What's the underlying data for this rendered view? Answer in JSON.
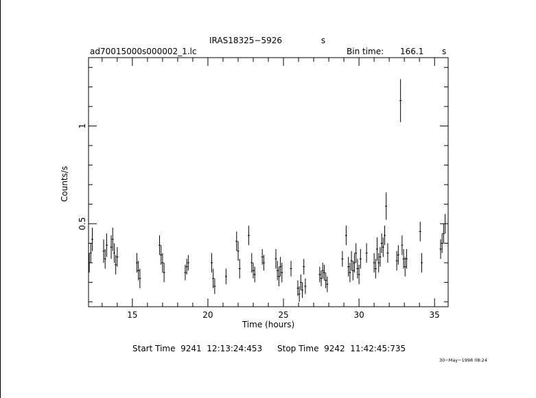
{
  "chart_data": {
    "type": "scatter",
    "title": "IRAS18325−5926",
    "title_suffix": "s",
    "file_name": "ad70015000s000002_1.lc",
    "bin_time_label": "Bin time:",
    "bin_time_value": "166.1",
    "bin_time_unit": "s",
    "xlabel": "Time (hours)",
    "ylabel": "Counts/s",
    "xlim": [
      12.1,
      35.9
    ],
    "ylim": [
      0.075,
      1.35
    ],
    "x_ticks": [
      {
        "value": 15,
        "label": "15"
      },
      {
        "value": 20,
        "label": "20"
      },
      {
        "value": 25,
        "label": "25"
      },
      {
        "value": 30,
        "label": "30"
      },
      {
        "value": 35,
        "label": "35"
      }
    ],
    "y_ticks": [
      {
        "value": 0.5,
        "label": "0.5"
      },
      {
        "value": 1,
        "label": "1"
      }
    ],
    "series": [
      {
        "points": [
          {
            "x": 12.15,
            "y": 0.3,
            "err": 0.05
          },
          {
            "x": 12.25,
            "y": 0.35,
            "err": 0.05
          },
          {
            "x": 12.35,
            "y": 0.42,
            "err": 0.06
          },
          {
            "x": 13.1,
            "y": 0.36,
            "err": 0.06
          },
          {
            "x": 13.2,
            "y": 0.32,
            "err": 0.05
          },
          {
            "x": 13.3,
            "y": 0.39,
            "err": 0.06
          },
          {
            "x": 13.6,
            "y": 0.38,
            "err": 0.06
          },
          {
            "x": 13.7,
            "y": 0.42,
            "err": 0.06
          },
          {
            "x": 13.8,
            "y": 0.35,
            "err": 0.05
          },
          {
            "x": 13.9,
            "y": 0.29,
            "err": 0.05
          },
          {
            "x": 14.0,
            "y": 0.33,
            "err": 0.05
          },
          {
            "x": 15.3,
            "y": 0.3,
            "err": 0.05
          },
          {
            "x": 15.4,
            "y": 0.26,
            "err": 0.05
          },
          {
            "x": 15.5,
            "y": 0.22,
            "err": 0.05
          },
          {
            "x": 16.8,
            "y": 0.39,
            "err": 0.05
          },
          {
            "x": 16.9,
            "y": 0.34,
            "err": 0.05
          },
          {
            "x": 17.0,
            "y": 0.3,
            "err": 0.05
          },
          {
            "x": 17.1,
            "y": 0.25,
            "err": 0.05
          },
          {
            "x": 18.5,
            "y": 0.25,
            "err": 0.04
          },
          {
            "x": 18.6,
            "y": 0.28,
            "err": 0.04
          },
          {
            "x": 18.7,
            "y": 0.3,
            "err": 0.04
          },
          {
            "x": 20.25,
            "y": 0.3,
            "err": 0.05
          },
          {
            "x": 20.35,
            "y": 0.22,
            "err": 0.05
          },
          {
            "x": 20.45,
            "y": 0.18,
            "err": 0.04
          },
          {
            "x": 21.2,
            "y": 0.23,
            "err": 0.04
          },
          {
            "x": 21.9,
            "y": 0.41,
            "err": 0.05
          },
          {
            "x": 22.0,
            "y": 0.36,
            "err": 0.05
          },
          {
            "x": 22.1,
            "y": 0.27,
            "err": 0.05
          },
          {
            "x": 22.7,
            "y": 0.44,
            "err": 0.05
          },
          {
            "x": 22.9,
            "y": 0.3,
            "err": 0.05
          },
          {
            "x": 23.0,
            "y": 0.26,
            "err": 0.04
          },
          {
            "x": 23.1,
            "y": 0.24,
            "err": 0.04
          },
          {
            "x": 23.6,
            "y": 0.33,
            "err": 0.04
          },
          {
            "x": 23.7,
            "y": 0.3,
            "err": 0.04
          },
          {
            "x": 24.5,
            "y": 0.32,
            "err": 0.05
          },
          {
            "x": 24.6,
            "y": 0.26,
            "err": 0.05
          },
          {
            "x": 24.7,
            "y": 0.23,
            "err": 0.05
          },
          {
            "x": 24.8,
            "y": 0.28,
            "err": 0.05
          },
          {
            "x": 24.9,
            "y": 0.25,
            "err": 0.05
          },
          {
            "x": 25.5,
            "y": 0.27,
            "err": 0.04
          },
          {
            "x": 25.95,
            "y": 0.17,
            "err": 0.04
          },
          {
            "x": 26.05,
            "y": 0.14,
            "err": 0.04
          },
          {
            "x": 26.15,
            "y": 0.2,
            "err": 0.04
          },
          {
            "x": 26.25,
            "y": 0.16,
            "err": 0.04
          },
          {
            "x": 26.35,
            "y": 0.28,
            "err": 0.04
          },
          {
            "x": 26.45,
            "y": 0.18,
            "err": 0.04
          },
          {
            "x": 27.4,
            "y": 0.24,
            "err": 0.04
          },
          {
            "x": 27.5,
            "y": 0.22,
            "err": 0.04
          },
          {
            "x": 27.6,
            "y": 0.26,
            "err": 0.04
          },
          {
            "x": 27.7,
            "y": 0.25,
            "err": 0.04
          },
          {
            "x": 27.8,
            "y": 0.21,
            "err": 0.04
          },
          {
            "x": 27.9,
            "y": 0.19,
            "err": 0.04
          },
          {
            "x": 28.9,
            "y": 0.32,
            "err": 0.04
          },
          {
            "x": 29.15,
            "y": 0.44,
            "err": 0.05
          },
          {
            "x": 29.3,
            "y": 0.28,
            "err": 0.05
          },
          {
            "x": 29.4,
            "y": 0.25,
            "err": 0.05
          },
          {
            "x": 29.5,
            "y": 0.31,
            "err": 0.05
          },
          {
            "x": 29.6,
            "y": 0.26,
            "err": 0.05
          },
          {
            "x": 29.7,
            "y": 0.3,
            "err": 0.05
          },
          {
            "x": 29.8,
            "y": 0.35,
            "err": 0.05
          },
          {
            "x": 29.9,
            "y": 0.27,
            "err": 0.05
          },
          {
            "x": 30.0,
            "y": 0.24,
            "err": 0.05
          },
          {
            "x": 30.1,
            "y": 0.32,
            "err": 0.05
          },
          {
            "x": 30.5,
            "y": 0.35,
            "err": 0.05
          },
          {
            "x": 31.0,
            "y": 0.3,
            "err": 0.05
          },
          {
            "x": 31.1,
            "y": 0.27,
            "err": 0.05
          },
          {
            "x": 31.2,
            "y": 0.37,
            "err": 0.06
          },
          {
            "x": 31.3,
            "y": 0.3,
            "err": 0.05
          },
          {
            "x": 31.4,
            "y": 0.33,
            "err": 0.05
          },
          {
            "x": 31.5,
            "y": 0.4,
            "err": 0.05
          },
          {
            "x": 31.6,
            "y": 0.38,
            "err": 0.05
          },
          {
            "x": 31.7,
            "y": 0.44,
            "err": 0.05
          },
          {
            "x": 31.8,
            "y": 0.59,
            "err": 0.07
          },
          {
            "x": 31.9,
            "y": 0.35,
            "err": 0.05
          },
          {
            "x": 32.5,
            "y": 0.31,
            "err": 0.05
          },
          {
            "x": 32.6,
            "y": 0.34,
            "err": 0.05
          },
          {
            "x": 32.75,
            "y": 1.13,
            "err": 0.11
          },
          {
            "x": 32.85,
            "y": 0.39,
            "err": 0.05
          },
          {
            "x": 32.95,
            "y": 0.32,
            "err": 0.05
          },
          {
            "x": 33.05,
            "y": 0.28,
            "err": 0.05
          },
          {
            "x": 33.15,
            "y": 0.32,
            "err": 0.05
          },
          {
            "x": 34.05,
            "y": 0.46,
            "err": 0.05
          },
          {
            "x": 34.15,
            "y": 0.3,
            "err": 0.05
          },
          {
            "x": 35.4,
            "y": 0.37,
            "err": 0.05
          },
          {
            "x": 35.5,
            "y": 0.4,
            "err": 0.05
          },
          {
            "x": 35.6,
            "y": 0.45,
            "err": 0.05
          },
          {
            "x": 35.7,
            "y": 0.5,
            "err": 0.05
          }
        ]
      }
    ],
    "grid": false,
    "legend": "none"
  },
  "footer": {
    "start_time": "Start Time  9241  12:13:24:453",
    "stop_time": "Stop Time  9242  11:42:45:735",
    "date_stamp": "30−May−1998 08:24"
  }
}
